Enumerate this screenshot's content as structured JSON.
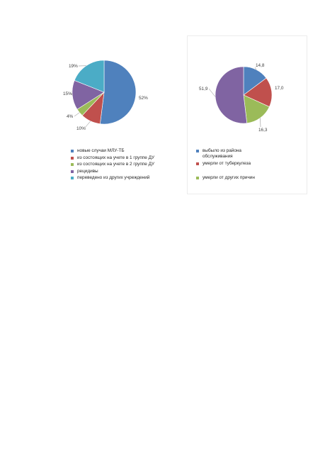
{
  "colors": {
    "blue": "#4f81bd",
    "red": "#c0504d",
    "green": "#9bbb59",
    "purple": "#8064a2",
    "teal": "#4bacc6"
  },
  "chart_data": [
    {
      "type": "pie",
      "title": "",
      "legend_position": "bottom",
      "series": [
        {
          "name": "новые случаи МЛУ-ТБ",
          "value": 52,
          "label": "52%",
          "color": "#4f81bd"
        },
        {
          "name": "из состоящих на учете в 1 группе ДУ",
          "value": 10,
          "label": "10%",
          "color": "#c0504d"
        },
        {
          "name": "из состоящих на учете в 2 группе ДУ",
          "value": 4,
          "label": "4%",
          "color": "#9bbb59"
        },
        {
          "name": "рецидивы",
          "value": 15,
          "label": "15%",
          "color": "#8064a2"
        },
        {
          "name": "переведено из других учреждений",
          "value": 19,
          "label": "19%",
          "color": "#4bacc6"
        }
      ]
    },
    {
      "type": "pie",
      "title": "",
      "legend_position": "bottom",
      "series": [
        {
          "name": "выбыло из района обслуживания",
          "value": 14.8,
          "label": "14,8",
          "color": "#4f81bd"
        },
        {
          "name": "умерли от туберкулеза",
          "value": 17.0,
          "label": "17,0",
          "color": "#c0504d"
        },
        {
          "name": "умерли от других причин",
          "value": 16.3,
          "label": "16,3",
          "color": "#9bbb59"
        },
        {
          "name": "",
          "value": 51.9,
          "label": "51,9",
          "color": "#8064a2"
        }
      ]
    }
  ]
}
